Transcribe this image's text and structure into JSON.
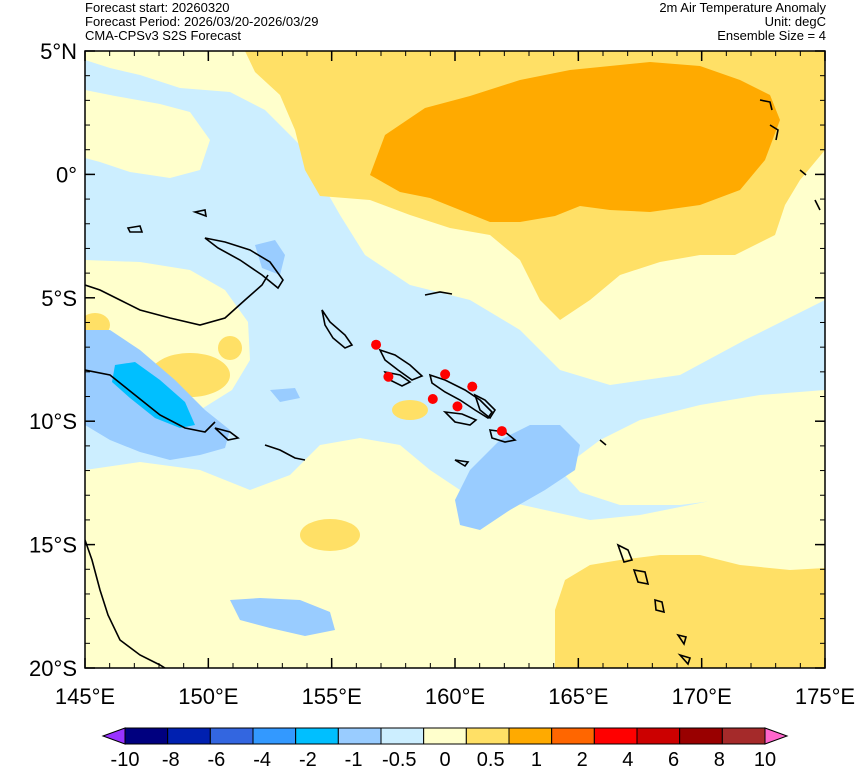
{
  "header": {
    "forecast_start": "Forecast start: 20260320",
    "forecast_period": "Forecast Period: 2026/03/20-2026/03/29",
    "model": "CMA-CPSv3 S2S Forecast",
    "variable": "2m Air Temperature Anomaly",
    "unit": "Unit: degC",
    "ensemble": "Ensemble Size = 4"
  },
  "map": {
    "lon_range": [
      145,
      175
    ],
    "lat_range": [
      -20,
      5
    ],
    "lat_ticks": [
      {
        "value": 5,
        "label": "5°N"
      },
      {
        "value": 0,
        "label": "0°"
      },
      {
        "value": -5,
        "label": "5°S"
      },
      {
        "value": -10,
        "label": "10°S"
      },
      {
        "value": -15,
        "label": "15°S"
      },
      {
        "value": -20,
        "label": "20°S"
      }
    ],
    "lon_ticks": [
      {
        "value": 145,
        "label": "145°E"
      },
      {
        "value": 150,
        "label": "150°E"
      },
      {
        "value": 155,
        "label": "155°E"
      },
      {
        "value": 160,
        "label": "160°E"
      },
      {
        "value": 165,
        "label": "165°E"
      },
      {
        "value": 170,
        "label": "170°E"
      },
      {
        "value": 175,
        "label": "175°E"
      }
    ],
    "stations": [
      {
        "lon": 156.8,
        "lat": -6.9
      },
      {
        "lon": 157.3,
        "lat": -8.2
      },
      {
        "lon": 159.6,
        "lat": -8.1
      },
      {
        "lon": 160.7,
        "lat": -8.6
      },
      {
        "lon": 159.1,
        "lat": -9.1
      },
      {
        "lon": 160.1,
        "lat": -9.4
      },
      {
        "lon": 161.9,
        "lat": -10.4
      }
    ],
    "station_color": "#ff0000"
  },
  "colorbar": {
    "labels": [
      "-10",
      "-8",
      "-6",
      "-4",
      "-2",
      "-1",
      "-0.5",
      "0",
      "0.5",
      "1",
      "2",
      "4",
      "6",
      "8",
      "10"
    ],
    "colors": [
      "#9933ff",
      "#00007f",
      "#0020b0",
      "#3366e0",
      "#3399ff",
      "#00bfff",
      "#99ccff",
      "#cceeff",
      "#ffffcc",
      "#ffe066",
      "#ffaa00",
      "#ff6600",
      "#ff0000",
      "#cc0000",
      "#990000",
      "#a52a2a",
      "#ff66cc"
    ]
  },
  "palette": {
    "light_blue": "#cceeff",
    "medium_blue": "#99ccff",
    "cyan_blue": "#00bfff",
    "light_yellow": "#ffffcc",
    "yellow": "#ffe066",
    "orange": "#ffaa00"
  }
}
